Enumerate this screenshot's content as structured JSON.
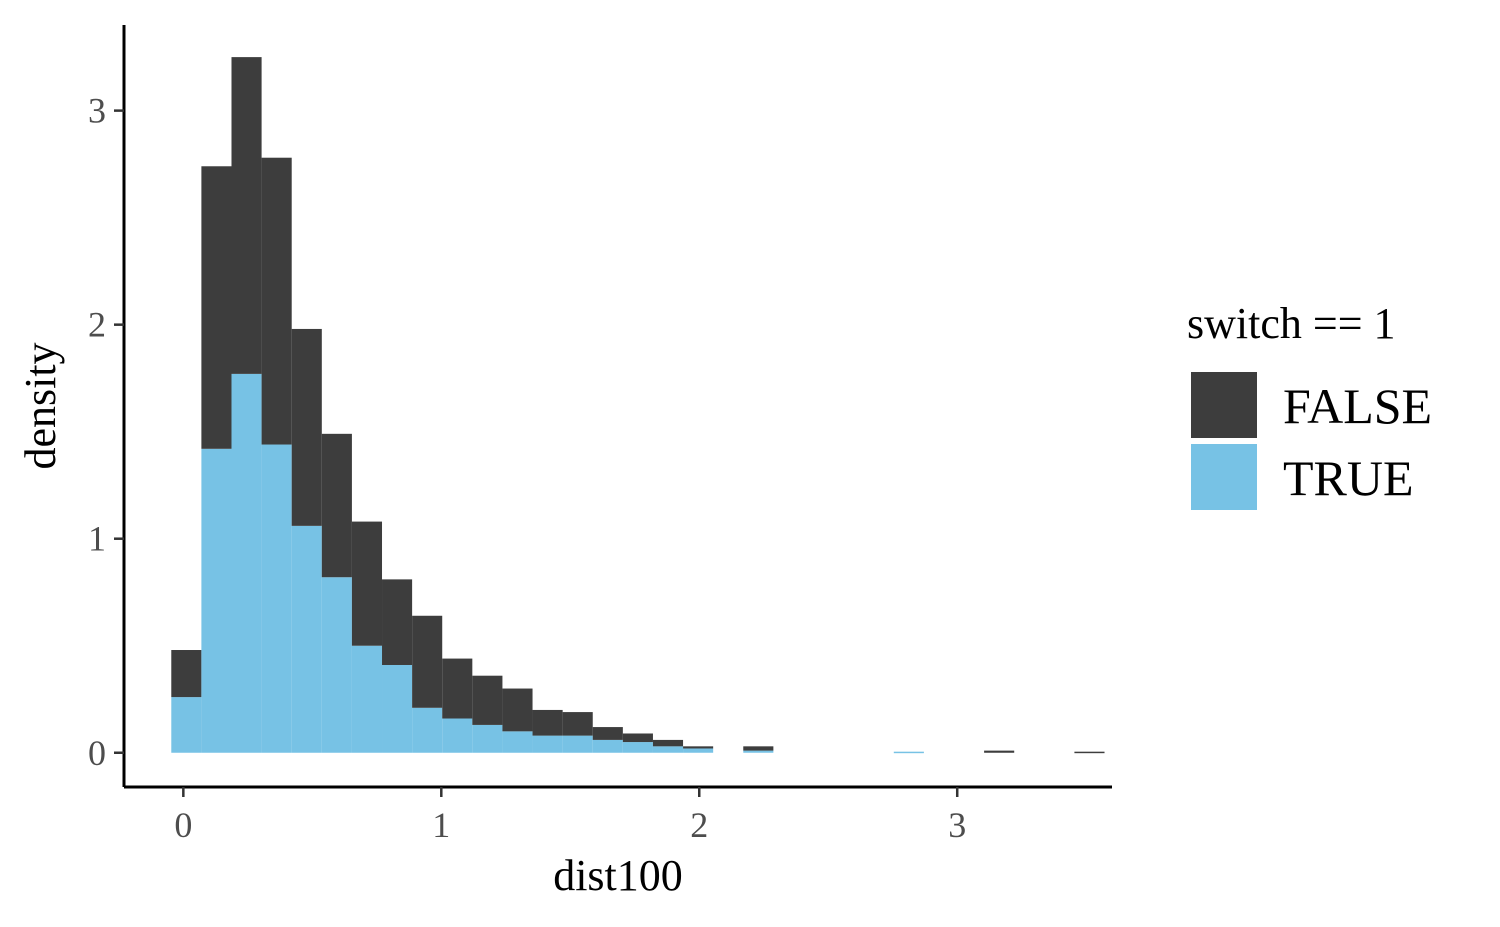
{
  "chart_data": {
    "type": "bar",
    "subtype": "stacked-histogram",
    "xlabel": "dist100",
    "ylabel": "density",
    "xlim": [
      -0.23,
      3.6
    ],
    "ylim": [
      -0.16,
      3.4
    ],
    "x_ticks": [
      0,
      1,
      2,
      3
    ],
    "y_ticks": [
      0,
      1,
      2,
      3
    ],
    "grid": false,
    "legend": {
      "title": "switch == 1",
      "position": "right",
      "entries": [
        "FALSE",
        "TRUE"
      ]
    },
    "bin_width": 0.1167,
    "bin_start": -0.0467,
    "series": [
      {
        "name": "FALSE",
        "color": "#3d3d3d",
        "values": [
          0.22,
          1.32,
          1.48,
          1.34,
          0.92,
          0.67,
          0.58,
          0.4,
          0.43,
          0.28,
          0.23,
          0.2,
          0.12,
          0.11,
          0.06,
          0.04,
          0.03,
          0.01,
          0.0,
          0.02,
          0.0,
          0.0,
          0.0,
          0.0,
          0.0,
          0.0,
          0.0,
          0.01,
          0.0,
          0.0,
          0.005
        ]
      },
      {
        "name": "TRUE",
        "color": "#77c2e5",
        "values": [
          0.26,
          1.42,
          1.77,
          1.44,
          1.06,
          0.82,
          0.5,
          0.41,
          0.21,
          0.16,
          0.13,
          0.1,
          0.08,
          0.08,
          0.06,
          0.05,
          0.03,
          0.02,
          0.0,
          0.01,
          0.0,
          0.0,
          0.0,
          0.0,
          0.005,
          0.0,
          0.0,
          0.0,
          0.0,
          0.0,
          0.0
        ]
      }
    ]
  }
}
